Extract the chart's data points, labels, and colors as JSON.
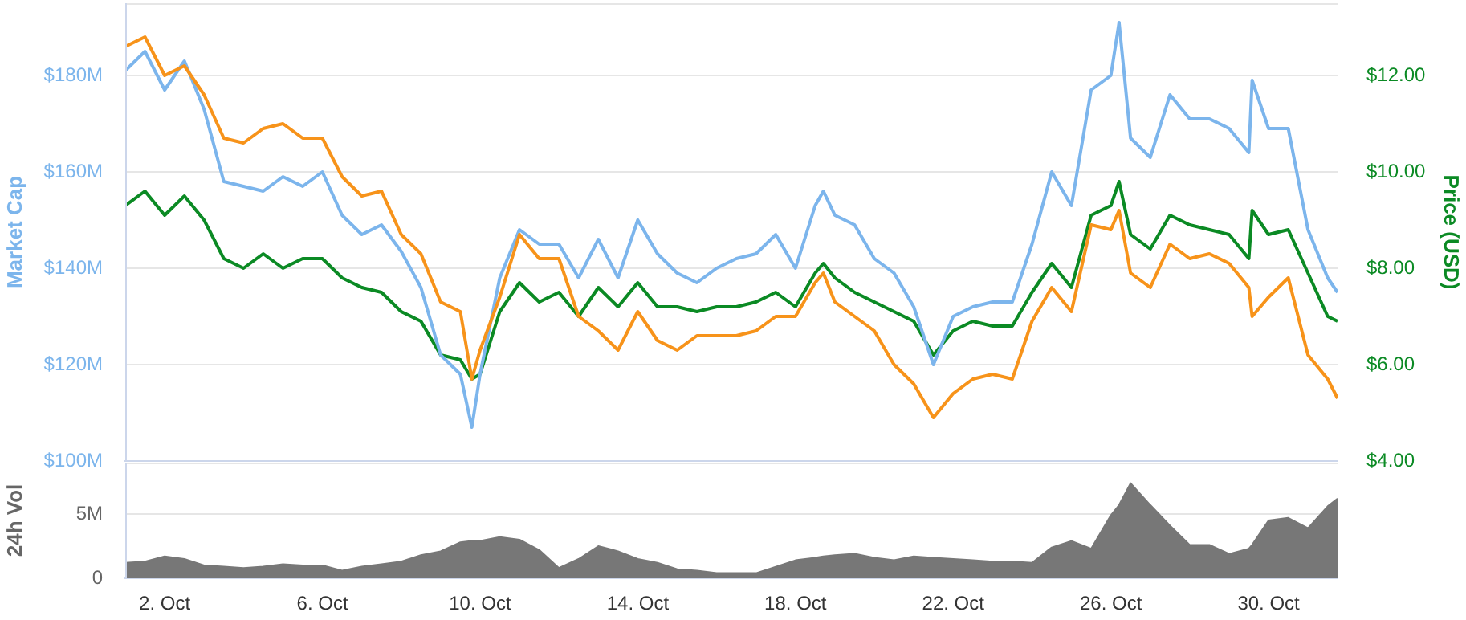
{
  "chart_data": [
    {
      "type": "line",
      "ylabel": "Market Cap",
      "y2label": "Price (USD)",
      "grid": "y",
      "marker": "none",
      "tick_labels": "y",
      "x": [
        "--10-01T00:00",
        "--10-01T12:00",
        "--10-02T00:00",
        "--10-02T12:00",
        "--10-03T00:00",
        "--10-03T12:00",
        "--10-04T00:00",
        "--10-04T12:00",
        "--10-05T00:00",
        "--10-05T12:00",
        "--10-06T00:00",
        "--10-06T12:00",
        "--10-07T00:00",
        "--10-07T12:00",
        "--10-08T00:00",
        "--10-08T12:00",
        "--10-09T00:00",
        "--10-09T12:00",
        "--10-09T19:00",
        "--10-10T00:00",
        "--10-10T12:00",
        "--10-11T00:00",
        "--10-11T12:00",
        "--10-12T00:00",
        "--10-12T12:00",
        "--10-13T00:00",
        "--10-13T12:00",
        "--10-14T00:00",
        "--10-14T12:00",
        "--10-15T00:00",
        "--10-15T12:00",
        "--10-16T00:00",
        "--10-16T12:00",
        "--10-17T00:00",
        "--10-17T12:00",
        "--10-18T00:00",
        "--10-18T12:00",
        "--10-18T17:00",
        "--10-19T00:00",
        "--10-19T12:00",
        "--10-20T00:00",
        "--10-20T12:00",
        "--10-21T00:00",
        "--10-21T12:00",
        "--10-22T00:00",
        "--10-22T12:00",
        "--10-23T00:00",
        "--10-23T12:00",
        "--10-24T00:00",
        "--10-24T12:00",
        "--10-25T00:00",
        "--10-25T12:00",
        "--10-26T00:00",
        "--10-26T05:00",
        "--10-26T12:00",
        "--10-27T00:00",
        "--10-27T12:00",
        "--10-28T00:00",
        "--10-28T12:00",
        "--10-29T00:00",
        "--10-29T12:00",
        "--10-29T14:00",
        "--10-30T00:00",
        "--10-30T12:00",
        "--10-31T00:00",
        "--10-31T12:00",
        "--10-31T18:00"
      ],
      "xlim": [
        "--10-01T00:00",
        "--10-31T18:00"
      ],
      "ylim": [
        100,
        195
      ],
      "yticks": [
        {
          "value": 100,
          "label": "$100M"
        },
        {
          "value": 120,
          "label": "$120M"
        },
        {
          "value": 140,
          "label": "$140M"
        },
        {
          "value": 160,
          "label": "$160M"
        },
        {
          "value": 180,
          "label": "$180M"
        }
      ],
      "y2lim": [
        4,
        13.5
      ],
      "y2ticks": [
        {
          "value": 4,
          "label": "$4.00"
        },
        {
          "value": 6,
          "label": "$6.00"
        },
        {
          "value": 8,
          "label": "$8.00"
        },
        {
          "value": 10,
          "label": "$10.00"
        },
        {
          "value": 12,
          "label": "$12.00"
        }
      ],
      "series": [
        {
          "color": "#f7931a",
          "values": [
            186,
            188,
            180,
            182,
            176,
            167,
            166,
            169,
            170,
            167,
            167,
            159,
            155,
            156,
            147,
            143,
            133,
            131,
            117,
            123,
            134,
            147,
            142,
            142,
            130,
            127,
            123,
            131,
            125,
            123,
            126,
            126,
            126,
            127,
            130,
            130,
            137,
            139,
            133,
            130,
            127,
            120,
            116,
            109,
            114,
            117,
            118,
            117,
            129,
            136,
            131,
            149,
            148,
            152,
            139,
            136,
            145,
            142,
            143,
            141,
            136,
            130,
            134,
            138,
            122,
            117,
            113
          ]
        },
        {
          "color": "#7cb5ec",
          "values": [
            181,
            185,
            177,
            183,
            173,
            158,
            157,
            156,
            159,
            157,
            160,
            151,
            147,
            149,
            143.5,
            136,
            122,
            118,
            107,
            118,
            138,
            148,
            145,
            145,
            138,
            146,
            138,
            150,
            143,
            139,
            137,
            140,
            142,
            143,
            147,
            140,
            153,
            156,
            151,
            149,
            142,
            139,
            132,
            120,
            130,
            132,
            133,
            133,
            145,
            160,
            153,
            177,
            180,
            191,
            167,
            163,
            176,
            171,
            171,
            169,
            164,
            179,
            169,
            169,
            148,
            138,
            135
          ]
        },
        {
          "color": "#0b8a24",
          "axis": "y2",
          "values": [
            9.3,
            9.6,
            9.1,
            9.5,
            9.0,
            8.2,
            8.0,
            8.3,
            8.0,
            8.2,
            8.2,
            7.8,
            7.6,
            7.5,
            7.1,
            6.9,
            6.2,
            6.1,
            5.7,
            5.8,
            7.1,
            7.7,
            7.3,
            7.5,
            7.0,
            7.6,
            7.2,
            7.7,
            7.2,
            7.2,
            7.1,
            7.2,
            7.2,
            7.3,
            7.5,
            7.2,
            7.9,
            8.1,
            7.8,
            7.5,
            7.3,
            7.1,
            6.9,
            6.2,
            6.7,
            6.9,
            6.8,
            6.8,
            7.5,
            8.1,
            7.6,
            9.1,
            9.3,
            9.8,
            8.7,
            8.4,
            9.1,
            8.9,
            8.8,
            8.7,
            8.2,
            9.2,
            8.7,
            8.8,
            7.9,
            7.0,
            6.9
          ]
        }
      ]
    },
    {
      "type": "area",
      "ylabel": "24h Vol",
      "grid": "y",
      "marker": "none",
      "color": "#777777",
      "x": [
        "--10-01T00:00",
        "--10-01T12:00",
        "--10-02T00:00",
        "--10-02T12:00",
        "--10-03T00:00",
        "--10-03T12:00",
        "--10-04T00:00",
        "--10-04T12:00",
        "--10-05T00:00",
        "--10-05T12:00",
        "--10-06T00:00",
        "--10-06T12:00",
        "--10-07T00:00",
        "--10-07T12:00",
        "--10-08T00:00",
        "--10-08T12:00",
        "--10-09T00:00",
        "--10-09T12:00",
        "--10-09T19:00",
        "--10-10T00:00",
        "--10-10T12:00",
        "--10-11T00:00",
        "--10-11T12:00",
        "--10-12T00:00",
        "--10-12T12:00",
        "--10-13T00:00",
        "--10-13T12:00",
        "--10-14T00:00",
        "--10-14T12:00",
        "--10-15T00:00",
        "--10-15T12:00",
        "--10-16T00:00",
        "--10-16T12:00",
        "--10-17T00:00",
        "--10-17T12:00",
        "--10-18T00:00",
        "--10-18T12:00",
        "--10-18T17:00",
        "--10-19T00:00",
        "--10-19T12:00",
        "--10-20T00:00",
        "--10-20T12:00",
        "--10-21T00:00",
        "--10-21T12:00",
        "--10-22T00:00",
        "--10-22T12:00",
        "--10-23T00:00",
        "--10-23T12:00",
        "--10-24T00:00",
        "--10-24T12:00",
        "--10-25T00:00",
        "--10-25T12:00",
        "--10-26T00:00",
        "--10-26T05:00",
        "--10-26T12:00",
        "--10-27T00:00",
        "--10-27T12:00",
        "--10-28T00:00",
        "--10-28T12:00",
        "--10-29T00:00",
        "--10-29T12:00",
        "--10-29T14:00",
        "--10-30T00:00",
        "--10-30T12:00",
        "--10-31T00:00",
        "--10-31T12:00",
        "--10-31T18:00"
      ],
      "xlim": [
        "--10-01T00:00",
        "--10-31T18:00"
      ],
      "xticks": [
        {
          "value": "--10-02",
          "label": "2. Oct"
        },
        {
          "value": "--10-06",
          "label": "6. Oct"
        },
        {
          "value": "--10-10",
          "label": "10. Oct"
        },
        {
          "value": "--10-14",
          "label": "14. Oct"
        },
        {
          "value": "--10-18",
          "label": "18. Oct"
        },
        {
          "value": "--10-22",
          "label": "22. Oct"
        },
        {
          "value": "--10-26",
          "label": "26. Oct"
        },
        {
          "value": "--10-30",
          "label": "30. Oct"
        }
      ],
      "ylim": [
        0,
        9
      ],
      "yticks": [
        0,
        {
          "value": 5,
          "label": "5M"
        }
      ],
      "values": [
        1.2,
        1.3,
        1.7,
        1.5,
        1.0,
        0.9,
        0.8,
        0.9,
        1.1,
        1.0,
        1.0,
        0.6,
        0.9,
        1.1,
        1.3,
        1.8,
        2.1,
        2.8,
        2.9,
        2.9,
        3.2,
        3.0,
        2.2,
        0.8,
        1.5,
        2.5,
        2.1,
        1.5,
        1.2,
        0.7,
        0.6,
        0.4,
        0.4,
        0.4,
        0.9,
        1.4,
        1.6,
        1.7,
        1.8,
        1.9,
        1.6,
        1.4,
        1.7,
        1.6,
        1.5,
        1.4,
        1.3,
        1.3,
        1.2,
        2.4,
        2.9,
        2.3,
        4.9,
        5.7,
        7.4,
        5.7,
        4.1,
        2.6,
        2.6,
        1.9,
        2.3,
        2.6,
        4.5,
        4.7,
        3.9,
        5.6,
        6.2
      ]
    }
  ]
}
